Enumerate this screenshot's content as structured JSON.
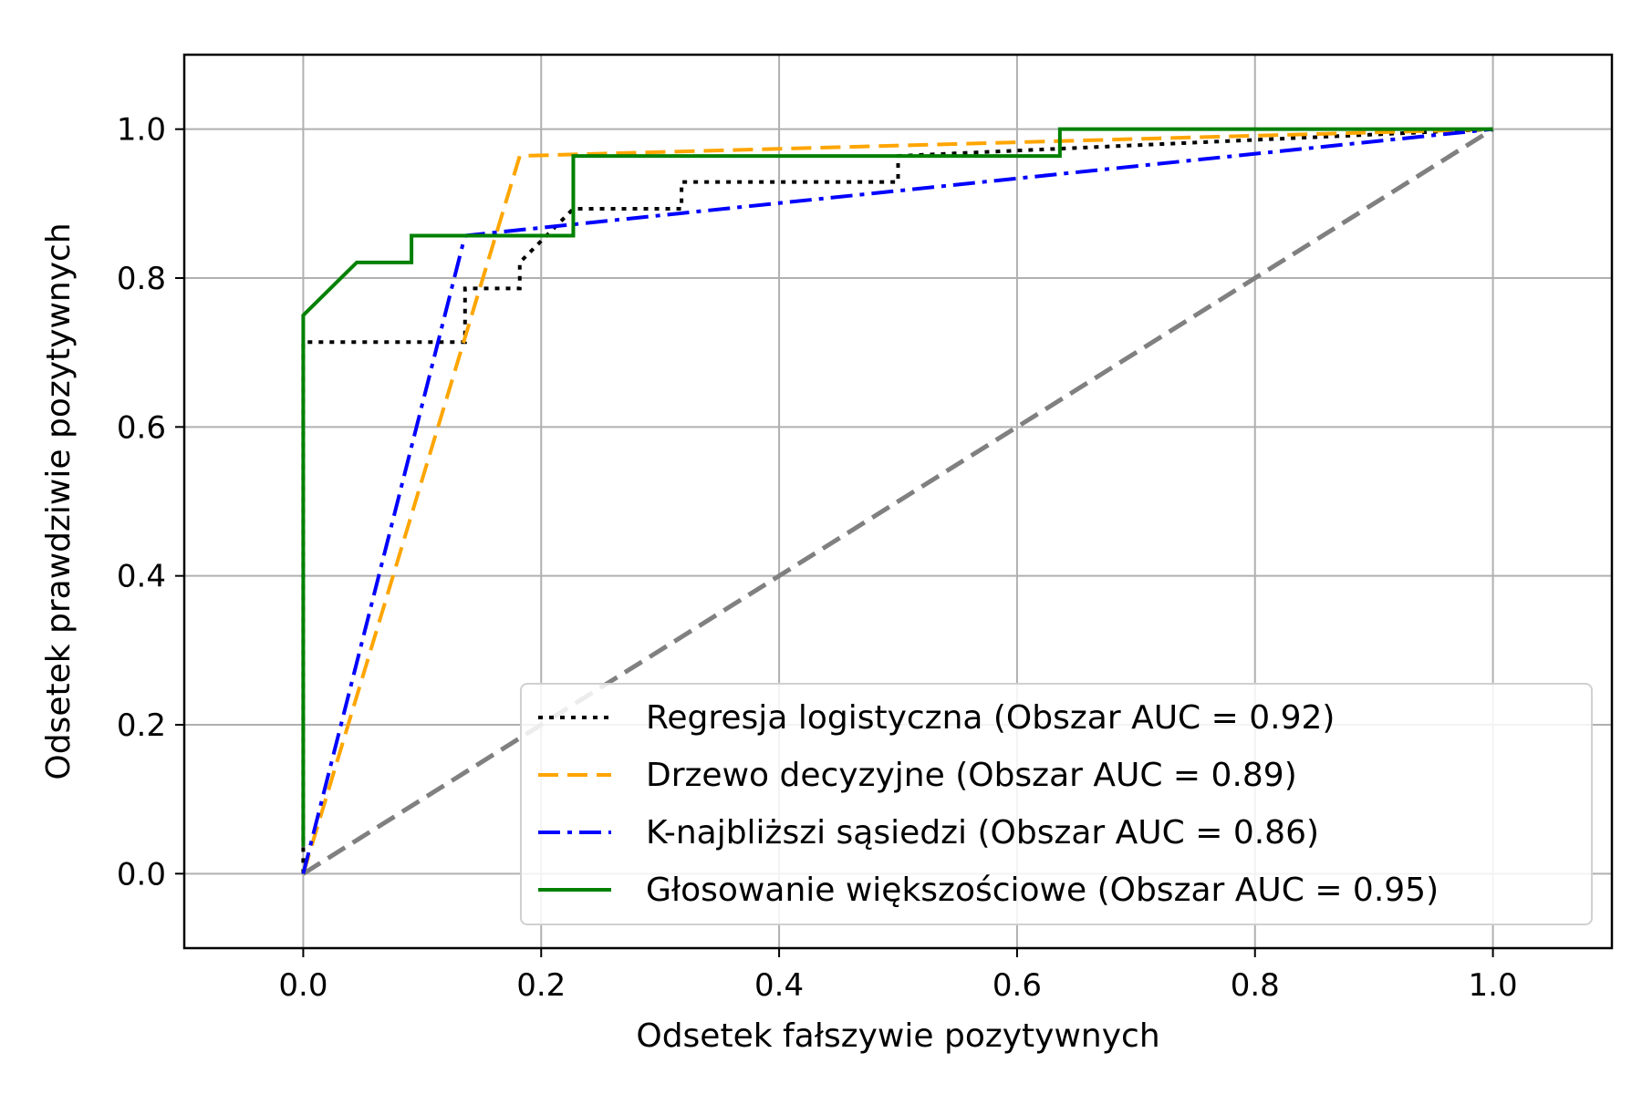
{
  "chart_data": {
    "type": "line",
    "title": "",
    "xlabel": "Odsetek fałszywie pozytywnych",
    "ylabel": "Odsetek prawdziwie pozytywnych",
    "xlim": [
      -0.1,
      1.1
    ],
    "ylim": [
      -0.1,
      1.1
    ],
    "x_ticks": [
      "0.0",
      "0.2",
      "0.4",
      "0.6",
      "0.8",
      "1.0"
    ],
    "y_ticks": [
      "0.0",
      "0.2",
      "0.4",
      "0.6",
      "0.8",
      "1.0"
    ],
    "grid": true,
    "legend_position": "lower-right",
    "series": [
      {
        "name": "Regresja logistyczna (Obszar AUC = 0.92)",
        "color": "#000000",
        "style": "dotted",
        "x": [
          0.0,
          0.0,
          0.0,
          0.136,
          0.136,
          0.182,
          0.182,
          0.227,
          0.318,
          0.318,
          0.5,
          0.5,
          1.0
        ],
        "y": [
          0.0,
          0.036,
          0.714,
          0.714,
          0.786,
          0.786,
          0.821,
          0.893,
          0.893,
          0.929,
          0.929,
          0.964,
          1.0
        ]
      },
      {
        "name": "Drzewo decyzyjne (Obszar AUC = 0.89)",
        "color": "#ffa500",
        "style": "dashed",
        "x": [
          0.0,
          0.182,
          1.0
        ],
        "y": [
          0.0,
          0.964,
          1.0
        ]
      },
      {
        "name": "K-najbliższi sąsiedzi (Obszar AUC = 0.86)",
        "color": "#0000ff",
        "style": "dashdot",
        "x": [
          0.0,
          0.136,
          1.0
        ],
        "y": [
          0.0,
          0.857,
          1.0
        ]
      },
      {
        "name": "Głosowanie większościowe (Obszar AUC = 0.95)",
        "color": "#008000",
        "style": "solid",
        "x": [
          0.0,
          0.0,
          0.0,
          0.045,
          0.091,
          0.091,
          0.227,
          0.227,
          0.636,
          0.636,
          1.0
        ],
        "y": [
          0.036,
          0.5,
          0.75,
          0.821,
          0.821,
          0.857,
          0.857,
          0.964,
          0.964,
          1.0,
          1.0
        ]
      }
    ],
    "reference_line": {
      "color": "#808080",
      "style": "dashed",
      "x": [
        0.0,
        1.0
      ],
      "y": [
        0.0,
        1.0
      ]
    }
  }
}
